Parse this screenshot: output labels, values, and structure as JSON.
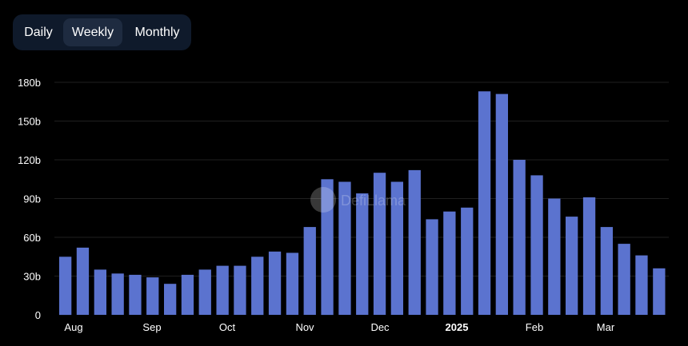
{
  "toggle": {
    "tabs": [
      {
        "label": "Daily",
        "active": false
      },
      {
        "label": "Weekly",
        "active": true
      },
      {
        "label": "Monthly",
        "active": false
      }
    ]
  },
  "colors": {
    "bar": "#5b73cf",
    "background": "#000000",
    "grid": "#1f1f1f",
    "toggle_bg": "#0f1a2b",
    "toggle_active": "#1e2b40"
  },
  "watermark": {
    "text": "DefiLlama"
  },
  "chart_data": {
    "type": "bar",
    "grid": true,
    "ylim": [
      0,
      180
    ],
    "y_ticks": [
      0,
      30,
      60,
      90,
      120,
      150,
      180
    ],
    "y_tick_labels": [
      "0",
      "30b",
      "60b",
      "90b",
      "120b",
      "150b",
      "180b"
    ],
    "x_tick_labels": [
      {
        "label": "Aug",
        "bold": false
      },
      {
        "label": "Sep",
        "bold": false
      },
      {
        "label": "Oct",
        "bold": false
      },
      {
        "label": "Nov",
        "bold": false
      },
      {
        "label": "Dec",
        "bold": false
      },
      {
        "label": "2025",
        "bold": true
      },
      {
        "label": "Feb",
        "bold": false
      },
      {
        "label": "Mar",
        "bold": false
      }
    ],
    "values": [
      45,
      52,
      35,
      32,
      31,
      29,
      24,
      31,
      35,
      38,
      38,
      45,
      49,
      48,
      68,
      105,
      103,
      94,
      110,
      103,
      112,
      74,
      80,
      83,
      173,
      171,
      120,
      108,
      90,
      76,
      91,
      68,
      55,
      46,
      36
    ]
  }
}
